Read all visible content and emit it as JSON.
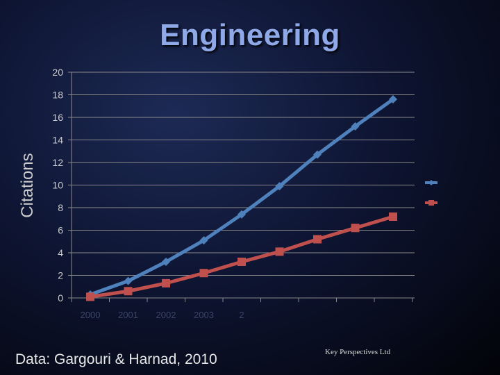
{
  "chart_data": {
    "type": "line",
    "title": "Engineering",
    "ylabel": "Citations",
    "xlabel": "",
    "ylim": [
      0,
      20
    ],
    "yticks": [
      0,
      2,
      4,
      6,
      8,
      10,
      12,
      14,
      16,
      18,
      20
    ],
    "x_tick_labels": [
      "2000",
      "2001",
      "2002",
      "2003",
      "2"
    ],
    "grid": true,
    "legend": "right",
    "series": [
      {
        "color": "#4f81bd",
        "marker": "diamond",
        "values": [
          0.3,
          1.5,
          3.2,
          5.1,
          7.4,
          9.9,
          12.7,
          15.2,
          17.6
        ]
      },
      {
        "color": "#c0504d",
        "marker": "square",
        "values": [
          0.1,
          0.6,
          1.3,
          2.2,
          3.2,
          4.1,
          5.2,
          6.2,
          7.2
        ]
      }
    ]
  },
  "footer": {
    "source": "Data: Gargouri & Harnad, 2010",
    "credit": "Key Perspectives Ltd"
  }
}
